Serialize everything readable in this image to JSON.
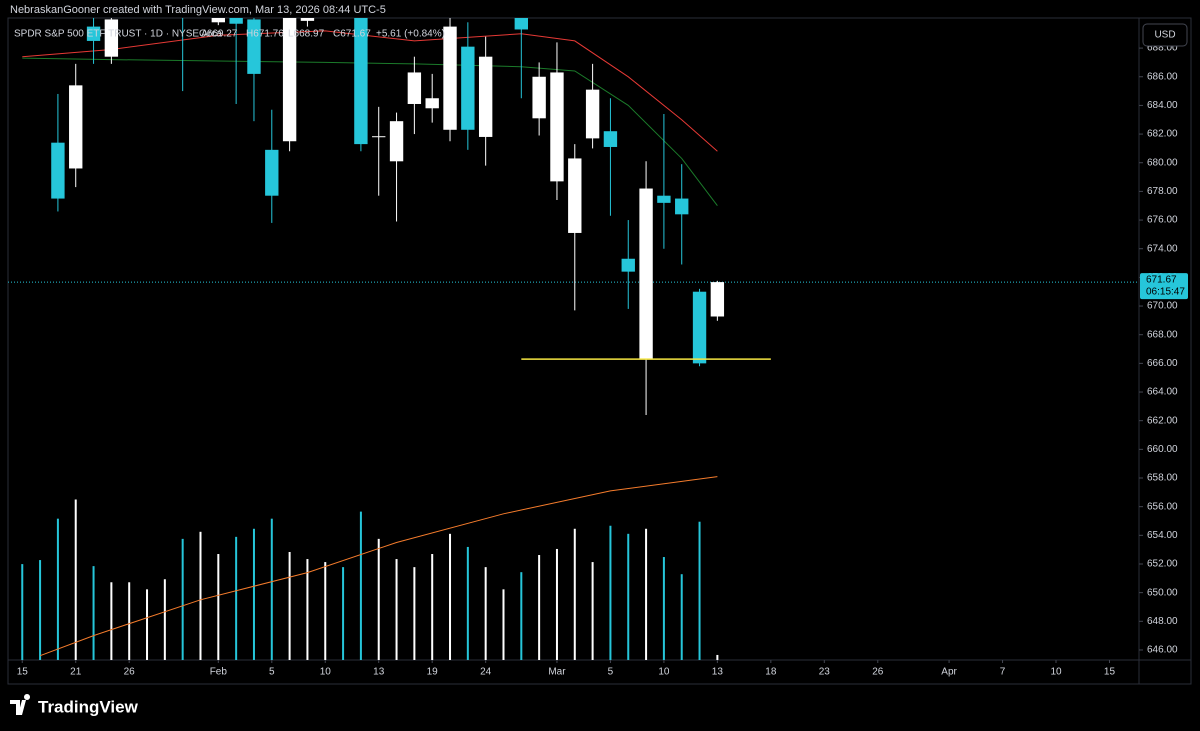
{
  "header": {
    "credit": "NebraskanGooner created with TradingView.com, Mar 13, 2026 08:44 UTC-5"
  },
  "legend": {
    "symbol": "SPDR S&P 500 ETF TRUST · 1D · NYSE Arca",
    "open": "O669.27",
    "high": "H671.76",
    "low": "L668.97",
    "close": "C671.67",
    "change": "+5.61 (+0.84%)"
  },
  "currency": "USD",
  "footer": {
    "brand": "TradingView"
  },
  "chart_data": {
    "type": "candlestick",
    "up_color": "#ffffff",
    "down_color": "#26c6da",
    "candles": [
      {
        "x": 0,
        "open": 691,
        "high": 692,
        "low": 690.3,
        "close": 690.3
      },
      {
        "x": 1,
        "open": 692,
        "high": 692.5,
        "low": 690.5,
        "close": 691
      },
      {
        "x": 2,
        "open": 681.4,
        "high": 684.8,
        "low": 676.6,
        "close": 677.5
      },
      {
        "x": 3,
        "open": 679.6,
        "high": 686.9,
        "low": 678.3,
        "close": 685.4
      },
      {
        "x": 4,
        "open": 689.5,
        "high": 690.5,
        "low": 686.9,
        "close": 688.5
      },
      {
        "x": 5,
        "open": 687.4,
        "high": 690.5,
        "low": 686.9,
        "close": 690
      },
      {
        "x": 6,
        "open": 690.5,
        "high": 692.5,
        "low": 690.2,
        "close": 692
      },
      {
        "x": 7,
        "open": 691,
        "high": 693,
        "low": 690.6,
        "close": 692.5
      },
      {
        "x": 8,
        "open": 691.5,
        "high": 693.5,
        "low": 690.8,
        "close": 693
      },
      {
        "x": 9,
        "open": 691,
        "high": 691.5,
        "low": 685,
        "close": 690.3
      },
      {
        "x": 10,
        "open": 690.5,
        "high": 692.5,
        "low": 690.1,
        "close": 692
      },
      {
        "x": 11,
        "open": 689.8,
        "high": 691,
        "low": 689.6,
        "close": 690.5
      },
      {
        "x": 12,
        "open": 690.5,
        "high": 691,
        "low": 684.1,
        "close": 689.7
      },
      {
        "x": 13,
        "open": 690,
        "high": 691,
        "low": 682.9,
        "close": 686.2
      },
      {
        "x": 14,
        "open": 680.9,
        "high": 683.7,
        "low": 675.8,
        "close": 677.7
      },
      {
        "x": 15,
        "open": 681.5,
        "high": 691,
        "low": 680.8,
        "close": 690.5
      },
      {
        "x": 16,
        "open": 689.9,
        "high": 691,
        "low": 689.5,
        "close": 690.5
      },
      {
        "x": 17,
        "open": 691,
        "high": 692.5,
        "low": 690.4,
        "close": 692
      },
      {
        "x": 18,
        "open": 692,
        "high": 692.5,
        "low": 690.4,
        "close": 691
      },
      {
        "x": 19,
        "open": 690.5,
        "high": 691,
        "low": 680.8,
        "close": 681.3
      },
      {
        "x": 20,
        "open": 681.8,
        "high": 683.9,
        "low": 677.7,
        "close": 681.85
      },
      {
        "x": 21,
        "open": 680.1,
        "high": 683.5,
        "low": 675.9,
        "close": 682.9
      },
      {
        "x": 22,
        "open": 684.1,
        "high": 687.4,
        "low": 682,
        "close": 686.3
      },
      {
        "x": 23,
        "open": 683.8,
        "high": 686.2,
        "low": 682.8,
        "close": 684.5
      },
      {
        "x": 24,
        "open": 682.3,
        "high": 690.5,
        "low": 681.5,
        "close": 689.5
      },
      {
        "x": 25,
        "open": 688.1,
        "high": 689.8,
        "low": 680.9,
        "close": 682.3
      },
      {
        "x": 26,
        "open": 681.8,
        "high": 688.8,
        "low": 679.8,
        "close": 687.4
      },
      {
        "x": 27,
        "open": 690.5,
        "high": 692,
        "low": 690.2,
        "close": 691.5
      },
      {
        "x": 28,
        "open": 690.2,
        "high": 690.5,
        "low": 684.5,
        "close": 689.3
      },
      {
        "x": 29,
        "open": 683.1,
        "high": 687,
        "low": 681.9,
        "close": 686
      },
      {
        "x": 30,
        "open": 678.7,
        "high": 688.4,
        "low": 677.4,
        "close": 686.3
      },
      {
        "x": 31,
        "open": 675.1,
        "high": 681.3,
        "low": 669.7,
        "close": 680.3
      },
      {
        "x": 32,
        "open": 681.7,
        "high": 686.9,
        "low": 681,
        "close": 685.1
      },
      {
        "x": 33,
        "open": 682.2,
        "high": 684.5,
        "low": 676.3,
        "close": 681.1
      },
      {
        "x": 34,
        "open": 673.3,
        "high": 676,
        "low": 669.8,
        "close": 672.4
      },
      {
        "x": 35,
        "open": 666.3,
        "high": 680.1,
        "low": 662.4,
        "close": 678.2
      },
      {
        "x": 36,
        "open": 677.7,
        "high": 683.4,
        "low": 674,
        "close": 677.2
      },
      {
        "x": 37,
        "open": 677.5,
        "high": 679.9,
        "low": 672.9,
        "close": 676.4
      },
      {
        "x": 38,
        "open": 671,
        "high": 671.2,
        "low": 665.8,
        "close": 666
      },
      {
        "x": 39,
        "open": 669.27,
        "high": 671.76,
        "low": 668.97,
        "close": 671.67
      }
    ],
    "volume": [
      95,
      99,
      140,
      159,
      93,
      77,
      77,
      70,
      80,
      120,
      127,
      105,
      122,
      130,
      140,
      107,
      100,
      97,
      92,
      147,
      120,
      100,
      92,
      105,
      125,
      112,
      92,
      70,
      87,
      104,
      110,
      130,
      97,
      133,
      125,
      130,
      102,
      85,
      137,
      5
    ],
    "moving_averages": [
      {
        "color": "#e53935",
        "x": [
          0,
          5,
          11,
          17,
          22,
          28,
          31,
          34,
          37,
          39
        ],
        "values": [
          687.4,
          687.9,
          688.9,
          689.2,
          688.5,
          689,
          688.5,
          686,
          683,
          680.8
        ]
      },
      {
        "color": "#1b7a2a",
        "x": [
          0,
          5,
          11,
          17,
          22,
          28,
          31,
          34,
          37,
          39
        ],
        "values": [
          687.3,
          687.2,
          687.1,
          687,
          686.9,
          686.7,
          686.4,
          684,
          680.3,
          677
        ]
      },
      {
        "color": "#f57c2c",
        "x": [
          1,
          4,
          10,
          16,
          21,
          27,
          33,
          39
        ],
        "values": [
          645.6,
          647,
          649.5,
          651.4,
          653.5,
          655.5,
          657.1,
          658.1
        ]
      }
    ],
    "hline": {
      "value": 666.3,
      "color": "#f5e642",
      "from": 28,
      "to": 42
    },
    "last_price": {
      "value": 671.67,
      "label": "671.67",
      "countdown": "06:15:47"
    },
    "ylim": [
      645.3,
      690.1
    ],
    "yticks": [
      {
        "value": 646,
        "label": "646.00"
      },
      {
        "value": 648,
        "label": "648.00"
      },
      {
        "value": 650,
        "label": "650.00"
      },
      {
        "value": 652,
        "label": "652.00"
      },
      {
        "value": 654,
        "label": "654.00"
      },
      {
        "value": 656,
        "label": "656.00"
      },
      {
        "value": 658,
        "label": "658.00"
      },
      {
        "value": 660,
        "label": "660.00"
      },
      {
        "value": 662,
        "label": "662.00"
      },
      {
        "value": 664,
        "label": "664.00"
      },
      {
        "value": 666,
        "label": "666.00"
      },
      {
        "value": 668,
        "label": "668.00"
      },
      {
        "value": 670,
        "label": "670.00"
      },
      {
        "value": 672,
        "label": "672.00"
      },
      {
        "value": 674,
        "label": "674.00"
      },
      {
        "value": 676,
        "label": "676.00"
      },
      {
        "value": 678,
        "label": "678.00"
      },
      {
        "value": 680,
        "label": "680.00"
      },
      {
        "value": 682,
        "label": "682.00"
      },
      {
        "value": 684,
        "label": "684.00"
      },
      {
        "value": 686,
        "label": "686.00"
      },
      {
        "value": 688,
        "label": "688.00"
      }
    ],
    "xlim": [
      -0.8,
      62.6
    ],
    "xticks": [
      {
        "value": 0,
        "label": "15"
      },
      {
        "value": 3,
        "label": "21"
      },
      {
        "value": 6,
        "label": "26"
      },
      {
        "value": 11,
        "label": "Feb"
      },
      {
        "value": 14,
        "label": "5"
      },
      {
        "value": 17,
        "label": "10"
      },
      {
        "value": 20,
        "label": "13"
      },
      {
        "value": 23,
        "label": "19"
      },
      {
        "value": 26,
        "label": "24"
      },
      {
        "value": 30,
        "label": "Mar"
      },
      {
        "value": 33,
        "label": "5"
      },
      {
        "value": 36,
        "label": "10"
      },
      {
        "value": 39,
        "label": "13"
      },
      {
        "value": 42,
        "label": "18"
      },
      {
        "value": 45,
        "label": "23"
      },
      {
        "value": 48,
        "label": "26"
      },
      {
        "value": 52,
        "label": "Apr"
      },
      {
        "value": 55,
        "label": "7"
      },
      {
        "value": 58,
        "label": "10"
      },
      {
        "value": 61,
        "label": "15"
      }
    ]
  }
}
